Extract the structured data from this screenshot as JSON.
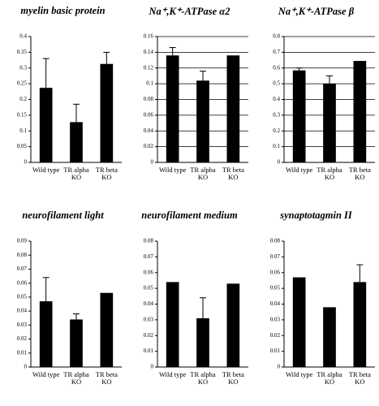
{
  "chart_data": [
    {
      "type": "bar",
      "title": "myelin basic protein",
      "categories": [
        "Wild type",
        "TR alpha KO",
        "TR beta KO"
      ],
      "values": [
        0.237,
        0.128,
        0.313
      ],
      "errors": [
        0.093,
        0.057,
        0.037
      ],
      "color": "#000000",
      "ylim": [
        0,
        0.4
      ],
      "yticks": [
        0,
        0.05,
        0.1,
        0.15,
        0.2,
        0.25,
        0.3,
        0.35,
        0.4
      ],
      "grid": false
    },
    {
      "type": "bar",
      "title": "Na⁺,K⁺-ATPase α2",
      "categories": [
        "Wild type",
        "TR alpha KO",
        "TR beta KO"
      ],
      "values": [
        0.136,
        0.104,
        0.136
      ],
      "errors": [
        0.01,
        0.012,
        null
      ],
      "color": "#000000",
      "ylim": [
        0,
        0.16
      ],
      "yticks": [
        0,
        0.02,
        0.04,
        0.06,
        0.08,
        0.1,
        0.12,
        0.14,
        0.16
      ],
      "grid": true
    },
    {
      "type": "bar",
      "title": "Na⁺,K⁺-ATPase β",
      "categories": [
        "Wild type",
        "TR alpha KO",
        "TR beta KO"
      ],
      "values": [
        0.585,
        0.5,
        0.645
      ],
      "errors": [
        0.015,
        0.05,
        null
      ],
      "color": "#000000",
      "ylim": [
        0,
        0.8
      ],
      "yticks": [
        0,
        0.1,
        0.2,
        0.3,
        0.4,
        0.5,
        0.6,
        0.7,
        0.8
      ],
      "grid": true
    },
    {
      "type": "bar",
      "title": "neurofilament light",
      "categories": [
        "Wild type",
        "TR alpha KO",
        "TR beta KO"
      ],
      "values": [
        0.047,
        0.034,
        0.053
      ],
      "errors": [
        0.017,
        0.004,
        null
      ],
      "color": "#000000",
      "ylim": [
        0,
        0.09
      ],
      "yticks": [
        0,
        0.01,
        0.02,
        0.03,
        0.04,
        0.05,
        0.06,
        0.07,
        0.08,
        0.09
      ],
      "grid": false
    },
    {
      "type": "bar",
      "title": "neurofilament medium",
      "categories": [
        "Wild type",
        "TR alpha KO",
        "TR beta KO"
      ],
      "values": [
        0.054,
        0.031,
        0.053
      ],
      "errors": [
        null,
        0.013,
        null
      ],
      "color": "#000000",
      "ylim": [
        0,
        0.08
      ],
      "yticks": [
        0,
        0.01,
        0.02,
        0.03,
        0.04,
        0.05,
        0.06,
        0.07,
        0.08
      ],
      "grid": false
    },
    {
      "type": "bar",
      "title": "synaptotagmin II",
      "categories": [
        "Wild type",
        "TR alpha KO",
        "TR beta KO"
      ],
      "values": [
        0.057,
        0.038,
        0.054
      ],
      "errors": [
        null,
        null,
        0.011
      ],
      "color": "#000000",
      "ylim": [
        0,
        0.08
      ],
      "yticks": [
        0,
        0.01,
        0.02,
        0.03,
        0.04,
        0.05,
        0.06,
        0.07,
        0.08
      ],
      "grid": false
    }
  ]
}
